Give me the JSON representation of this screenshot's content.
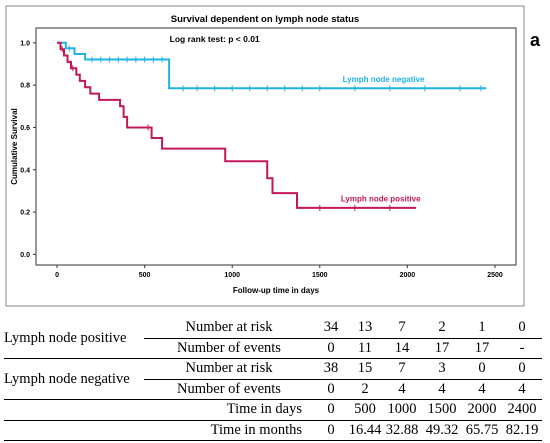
{
  "panel_letter": "a",
  "chart_data": {
    "type": "line",
    "title": "Survival dependent on lymph node status",
    "annotation": "Log rank test: p < 0.01",
    "xlabel": "Follow-up time in days",
    "ylabel": "Cumulative Survival",
    "xlim": [
      -120,
      2620
    ],
    "ylim": [
      -0.05,
      1.07
    ],
    "x_ticks": [
      0,
      500,
      1000,
      1500,
      2000,
      2500
    ],
    "y_ticks": [
      0.0,
      0.2,
      0.4,
      0.6,
      0.8,
      1.0
    ],
    "x_tick_labels": [
      "0",
      "500",
      "1000",
      "1500",
      "2000",
      "2500"
    ],
    "y_tick_labels": [
      "0.0",
      "0.2",
      "0.4",
      "0.6",
      "0.8",
      "1.0"
    ],
    "grid": false,
    "series": [
      {
        "name": "Lymph node negative",
        "color": "#1fb4e3",
        "steps": [
          [
            0,
            1.0
          ],
          [
            50,
            1.0
          ],
          [
            50,
            0.974
          ],
          [
            100,
            0.974
          ],
          [
            100,
            0.947
          ],
          [
            160,
            0.947
          ],
          [
            160,
            0.921
          ],
          [
            640,
            0.921
          ],
          [
            640,
            0.785
          ],
          [
            2450,
            0.785
          ]
        ],
        "censored": [
          [
            70,
            0.974
          ],
          [
            200,
            0.921
          ],
          [
            250,
            0.921
          ],
          [
            300,
            0.921
          ],
          [
            350,
            0.921
          ],
          [
            400,
            0.921
          ],
          [
            450,
            0.921
          ],
          [
            500,
            0.921
          ],
          [
            550,
            0.921
          ],
          [
            600,
            0.921
          ],
          [
            720,
            0.785
          ],
          [
            800,
            0.785
          ],
          [
            900,
            0.785
          ],
          [
            1000,
            0.785
          ],
          [
            1100,
            0.785
          ],
          [
            1200,
            0.785
          ],
          [
            1300,
            0.785
          ],
          [
            1400,
            0.785
          ],
          [
            1500,
            0.785
          ],
          [
            1700,
            0.785
          ],
          [
            1900,
            0.785
          ],
          [
            2100,
            0.785
          ],
          [
            2300,
            0.785
          ],
          [
            2420,
            0.785
          ]
        ]
      },
      {
        "name": "Lymph node positive",
        "color": "#c2185b",
        "steps": [
          [
            0,
            1.0
          ],
          [
            20,
            1.0
          ],
          [
            20,
            0.97
          ],
          [
            40,
            0.97
          ],
          [
            40,
            0.94
          ],
          [
            60,
            0.94
          ],
          [
            60,
            0.91
          ],
          [
            80,
            0.91
          ],
          [
            80,
            0.88
          ],
          [
            110,
            0.88
          ],
          [
            110,
            0.85
          ],
          [
            130,
            0.85
          ],
          [
            130,
            0.82
          ],
          [
            160,
            0.82
          ],
          [
            160,
            0.79
          ],
          [
            190,
            0.79
          ],
          [
            190,
            0.76
          ],
          [
            240,
            0.76
          ],
          [
            240,
            0.73
          ],
          [
            360,
            0.73
          ],
          [
            360,
            0.7
          ],
          [
            380,
            0.7
          ],
          [
            380,
            0.65
          ],
          [
            400,
            0.65
          ],
          [
            400,
            0.6
          ],
          [
            540,
            0.6
          ],
          [
            540,
            0.55
          ],
          [
            600,
            0.55
          ],
          [
            600,
            0.5
          ],
          [
            960,
            0.5
          ],
          [
            960,
            0.44
          ],
          [
            1200,
            0.44
          ],
          [
            1200,
            0.36
          ],
          [
            1230,
            0.36
          ],
          [
            1230,
            0.29
          ],
          [
            1370,
            0.29
          ],
          [
            1370,
            0.22
          ],
          [
            2050,
            0.22
          ]
        ],
        "censored": [
          [
            30,
            0.97
          ],
          [
            90,
            0.88
          ],
          [
            520,
            0.6
          ],
          [
            1500,
            0.22
          ],
          [
            1700,
            0.22
          ],
          [
            1900,
            0.22
          ]
        ]
      }
    ],
    "series_labels": [
      {
        "text": "Lymph node negative",
        "x": 1630,
        "y": 0.815
      },
      {
        "text": "Lymph node positive",
        "x": 1620,
        "y": 0.25
      }
    ]
  },
  "risk_table": {
    "groups": [
      {
        "name": "Lymph node positive",
        "rows": [
          {
            "label": "Number at risk",
            "values": [
              "34",
              "13",
              "7",
              "2",
              "1",
              "0"
            ]
          },
          {
            "label": "Number of events",
            "values": [
              "0",
              "11",
              "14",
              "17",
              "17",
              "-"
            ]
          }
        ]
      },
      {
        "name": "Lymph node negative",
        "rows": [
          {
            "label": "Number at risk",
            "values": [
              "38",
              "15",
              "7",
              "3",
              "0",
              "0"
            ]
          },
          {
            "label": "Number of events",
            "values": [
              "0",
              "2",
              "4",
              "4",
              "4",
              "4"
            ]
          }
        ]
      }
    ],
    "time_rows": [
      {
        "label": "Time in days",
        "values": [
          "0",
          "500",
          "1000",
          "1500",
          "2000",
          "2400"
        ]
      },
      {
        "label": "Time in months",
        "values": [
          "0",
          "16.44",
          "32.88",
          "49.32",
          "65.75",
          "82.19"
        ]
      }
    ]
  }
}
